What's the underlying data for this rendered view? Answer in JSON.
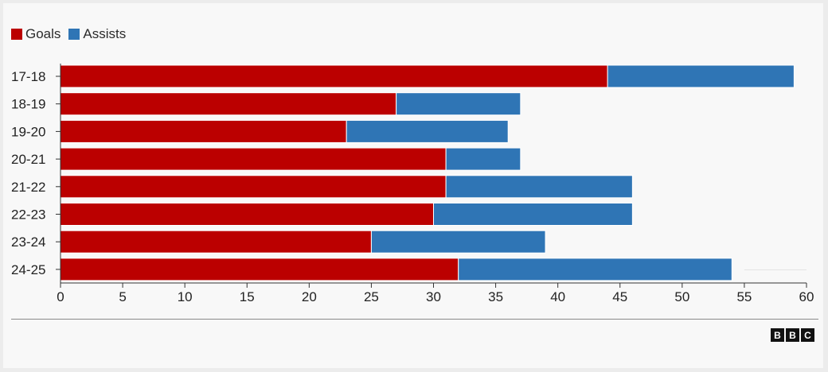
{
  "chart_data": {
    "type": "bar",
    "orientation": "horizontal",
    "stacked": true,
    "categories": [
      "17-18",
      "18-19",
      "19-20",
      "20-21",
      "21-22",
      "22-23",
      "23-24",
      "24-25"
    ],
    "series": [
      {
        "name": "Goals",
        "color": "#bb0000",
        "values": [
          44,
          27,
          23,
          31,
          31,
          30,
          25,
          32
        ]
      },
      {
        "name": "Assists",
        "color": "#2f75b5",
        "values": [
          15,
          10,
          13,
          6,
          15,
          16,
          14,
          22
        ]
      }
    ],
    "xlim": [
      0,
      60
    ],
    "xticks": [
      0,
      5,
      10,
      15,
      20,
      25,
      30,
      35,
      40,
      45,
      50,
      55,
      60
    ],
    "legend_position": "top-left",
    "title": "",
    "xlabel": "",
    "ylabel": ""
  },
  "legend": {
    "goals_label": "Goals",
    "assists_label": "Assists",
    "goals_color": "#bb0000",
    "assists_color": "#2f75b5"
  },
  "footer": {
    "logo_letters": [
      "B",
      "B",
      "C"
    ]
  }
}
